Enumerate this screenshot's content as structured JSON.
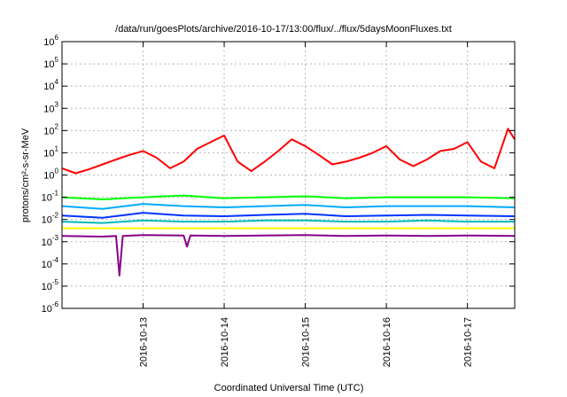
{
  "chart_data": {
    "type": "line",
    "title": "/data/run/goesPlots/archive/2016-10-17/13:00/flux/../flux/5daysMoonFluxes.txt",
    "xlabel": "Coordinated Universal Time (UTC)",
    "ylabel": "protons/cm²-s-sr-MeV",
    "y_scale": "log",
    "ylim": [
      1e-06,
      1000000.0
    ],
    "xlim": [
      "2016-10-12 00:00",
      "2016-10-17 14:00"
    ],
    "grid": true,
    "x_ticks": [
      "2016-10-13",
      "2016-10-14",
      "2016-10-15",
      "2016-10-16",
      "2016-10-17"
    ],
    "y_ticks": [
      {
        "base": "10",
        "exp": "-6",
        "value": 1e-06
      },
      {
        "base": "10",
        "exp": "-5",
        "value": 1e-05
      },
      {
        "base": "10",
        "exp": "-4",
        "value": 0.0001
      },
      {
        "base": "10",
        "exp": "-3",
        "value": 0.001
      },
      {
        "base": "10",
        "exp": "-2",
        "value": 0.01
      },
      {
        "base": "10",
        "exp": "-1",
        "value": 0.1
      },
      {
        "base": "10",
        "exp": "0",
        "value": 1
      },
      {
        "base": "10",
        "exp": "1",
        "value": 10
      },
      {
        "base": "10",
        "exp": "2",
        "value": 100
      },
      {
        "base": "10",
        "exp": "3",
        "value": 1000
      },
      {
        "base": "10",
        "exp": "4",
        "value": 10000
      },
      {
        "base": "10",
        "exp": "5",
        "value": 100000
      },
      {
        "base": "10",
        "exp": "6",
        "value": 1000000
      }
    ],
    "series": [
      {
        "color": "#ff0000",
        "x": [
          "2016-10-12 00:00",
          "2016-10-12 04:00",
          "2016-10-12 08:00",
          "2016-10-12 12:00",
          "2016-10-12 16:00",
          "2016-10-12 20:00",
          "2016-10-13 00:00",
          "2016-10-13 04:00",
          "2016-10-13 08:00",
          "2016-10-13 12:00",
          "2016-10-13 16:00",
          "2016-10-13 20:00",
          "2016-10-14 00:00",
          "2016-10-14 04:00",
          "2016-10-14 08:00",
          "2016-10-14 12:00",
          "2016-10-14 16:00",
          "2016-10-14 20:00",
          "2016-10-15 00:00",
          "2016-10-15 04:00",
          "2016-10-15 08:00",
          "2016-10-15 12:00",
          "2016-10-15 16:00",
          "2016-10-15 20:00",
          "2016-10-16 00:00",
          "2016-10-16 04:00",
          "2016-10-16 08:00",
          "2016-10-16 12:00",
          "2016-10-16 16:00",
          "2016-10-16 20:00",
          "2016-10-17 00:00",
          "2016-10-17 04:00",
          "2016-10-17 08:00",
          "2016-10-17 12:00",
          "2016-10-17 14:00"
        ],
        "values": [
          2,
          1.2,
          1.8,
          3,
          5,
          8,
          12,
          6,
          2,
          4,
          15,
          30,
          60,
          4,
          1.5,
          4,
          12,
          40,
          20,
          8,
          3,
          4,
          6,
          10,
          20,
          5,
          2.5,
          5,
          12,
          15,
          30,
          4,
          2,
          120,
          40
        ]
      },
      {
        "color": "#00ff00",
        "x": [
          "2016-10-12 00:00",
          "2016-10-12 12:00",
          "2016-10-13 00:00",
          "2016-10-13 12:00",
          "2016-10-14 00:00",
          "2016-10-14 12:00",
          "2016-10-15 00:00",
          "2016-10-15 12:00",
          "2016-10-16 00:00",
          "2016-10-16 12:00",
          "2016-10-17 00:00",
          "2016-10-17 14:00"
        ],
        "values": [
          0.1,
          0.08,
          0.1,
          0.12,
          0.09,
          0.1,
          0.11,
          0.09,
          0.1,
          0.1,
          0.1,
          0.09
        ]
      },
      {
        "color": "#00aaff",
        "x": [
          "2016-10-12 00:00",
          "2016-10-12 12:00",
          "2016-10-13 00:00",
          "2016-10-13 12:00",
          "2016-10-14 00:00",
          "2016-10-14 12:00",
          "2016-10-15 00:00",
          "2016-10-15 12:00",
          "2016-10-16 00:00",
          "2016-10-16 12:00",
          "2016-10-17 00:00",
          "2016-10-17 14:00"
        ],
        "values": [
          0.04,
          0.03,
          0.05,
          0.04,
          0.035,
          0.04,
          0.045,
          0.035,
          0.04,
          0.04,
          0.04,
          0.035
        ]
      },
      {
        "color": "#0033ff",
        "x": [
          "2016-10-12 00:00",
          "2016-10-12 12:00",
          "2016-10-13 00:00",
          "2016-10-13 12:00",
          "2016-10-14 00:00",
          "2016-10-14 12:00",
          "2016-10-15 00:00",
          "2016-10-15 12:00",
          "2016-10-16 00:00",
          "2016-10-16 12:00",
          "2016-10-17 00:00",
          "2016-10-17 14:00"
        ],
        "values": [
          0.015,
          0.012,
          0.02,
          0.015,
          0.014,
          0.016,
          0.018,
          0.014,
          0.015,
          0.016,
          0.015,
          0.014
        ]
      },
      {
        "color": "#00bbbb",
        "x": [
          "2016-10-12 00:00",
          "2016-10-12 12:00",
          "2016-10-13 00:00",
          "2016-10-13 12:00",
          "2016-10-14 00:00",
          "2016-10-14 12:00",
          "2016-10-15 00:00",
          "2016-10-15 12:00",
          "2016-10-16 00:00",
          "2016-10-16 12:00",
          "2016-10-17 00:00",
          "2016-10-17 14:00"
        ],
        "values": [
          0.008,
          0.007,
          0.009,
          0.008,
          0.008,
          0.009,
          0.009,
          0.008,
          0.008,
          0.009,
          0.008,
          0.008
        ]
      },
      {
        "color": "#ffff00",
        "x": [
          "2016-10-12 00:00",
          "2016-10-12 12:00",
          "2016-10-13 00:00",
          "2016-10-13 12:00",
          "2016-10-14 00:00",
          "2016-10-14 12:00",
          "2016-10-15 00:00",
          "2016-10-15 12:00",
          "2016-10-16 00:00",
          "2016-10-16 12:00",
          "2016-10-17 00:00",
          "2016-10-17 14:00"
        ],
        "values": [
          0.004,
          0.004,
          0.004,
          0.004,
          0.004,
          0.004,
          0.004,
          0.004,
          0.004,
          0.004,
          0.004,
          0.004
        ]
      },
      {
        "color": "#880088",
        "x": [
          "2016-10-12 00:00",
          "2016-10-12 12:00",
          "2016-10-12 16:00",
          "2016-10-12 17:00",
          "2016-10-12 18:00",
          "2016-10-13 00:00",
          "2016-10-13 12:00",
          "2016-10-13 13:00",
          "2016-10-13 14:00",
          "2016-10-14 00:00",
          "2016-10-14 12:00",
          "2016-10-15 00:00",
          "2016-10-15 12:00",
          "2016-10-16 00:00",
          "2016-10-16 12:00",
          "2016-10-17 00:00",
          "2016-10-17 14:00"
        ],
        "values": [
          0.0018,
          0.0017,
          0.0018,
          3e-05,
          0.0018,
          0.002,
          0.0019,
          0.0006,
          0.0019,
          0.0018,
          0.0019,
          0.002,
          0.0018,
          0.0019,
          0.0018,
          0.0019,
          0.0018
        ]
      }
    ]
  }
}
